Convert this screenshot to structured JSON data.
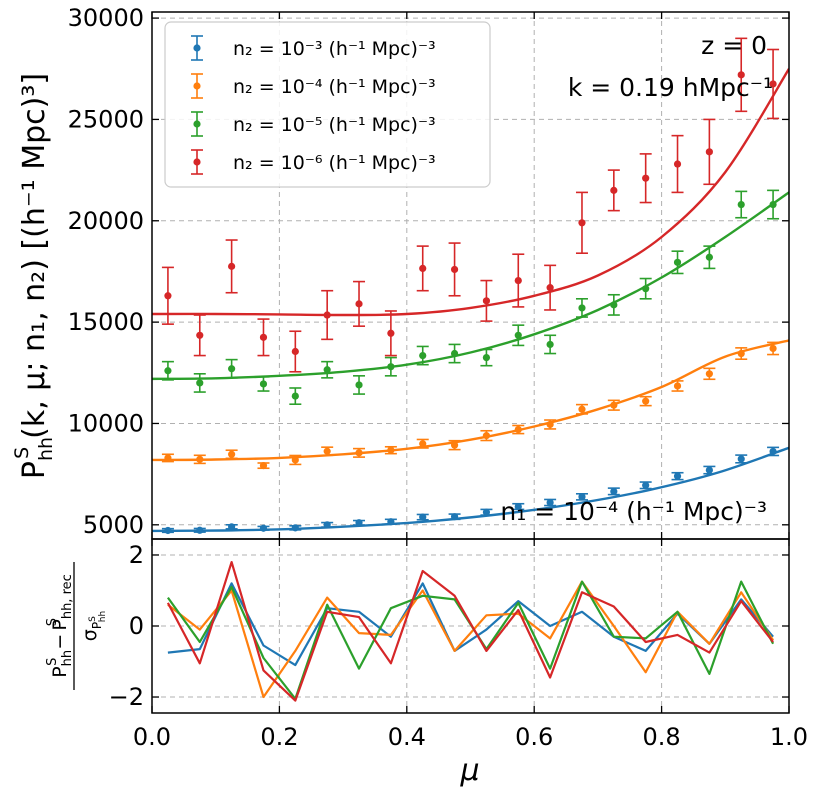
{
  "chart_data": [
    {
      "type": "scatter",
      "panel": "top",
      "xlim": [
        0,
        1
      ],
      "ylim": [
        4300,
        30300
      ],
      "yticks": [
        5000,
        10000,
        15000,
        20000,
        25000,
        30000
      ],
      "ytick_labels": [
        "5000",
        "10000",
        "15000",
        "20000",
        "25000",
        "30000"
      ],
      "xticks": [
        0,
        0.2,
        0.4,
        0.6,
        0.8,
        1.0
      ],
      "grid": true,
      "ylabel": {
        "main": "P",
        "sup": "S",
        "sub": "hh",
        "args": "(k, μ; n₁, n₂) [(h⁻¹ Mpc)³]"
      },
      "annotations": {
        "z": "z = 0",
        "k": "k = 0.19 hMpc⁻¹",
        "n1": "n₁ = 10⁻⁴ (h⁻¹ Mpc)⁻³"
      },
      "legend_position": "top-left",
      "series": [
        {
          "name": "n₂ = 10⁻³ (h⁻¹ Mpc)⁻³",
          "color": "#1f77b4",
          "x": [
            0.025,
            0.075,
            0.125,
            0.175,
            0.225,
            0.275,
            0.325,
            0.375,
            0.425,
            0.475,
            0.525,
            0.575,
            0.625,
            0.675,
            0.725,
            0.775,
            0.825,
            0.875,
            0.925,
            0.975
          ],
          "y": [
            4720,
            4730,
            4900,
            4830,
            4850,
            5000,
            5100,
            5150,
            5380,
            5400,
            5620,
            5900,
            6100,
            6380,
            6650,
            6950,
            7400,
            7700,
            8250,
            8620
          ],
          "err": [
            90,
            90,
            100,
            90,
            100,
            110,
            110,
            120,
            130,
            130,
            140,
            140,
            150,
            150,
            160,
            160,
            170,
            180,
            190,
            200
          ],
          "fit": [
            4700,
            4720,
            4800,
            4960,
            5200,
            5560,
            6050,
            6700,
            7580,
            8800
          ]
        },
        {
          "name": "n₂ = 10⁻⁴ (h⁻¹ Mpc)⁻³",
          "color": "#ff7f0e",
          "x": [
            0.025,
            0.075,
            0.125,
            0.175,
            0.225,
            0.275,
            0.325,
            0.375,
            0.425,
            0.475,
            0.525,
            0.575,
            0.625,
            0.675,
            0.725,
            0.775,
            0.825,
            0.875,
            0.925,
            0.975
          ],
          "y": [
            8300,
            8230,
            8480,
            7920,
            8200,
            8630,
            8550,
            8680,
            9000,
            8930,
            9400,
            9700,
            9950,
            10700,
            10900,
            11100,
            11850,
            12450,
            13450,
            13700
          ],
          "err": [
            180,
            200,
            200,
            130,
            220,
            200,
            210,
            170,
            210,
            220,
            240,
            200,
            220,
            230,
            240,
            220,
            250,
            270,
            280,
            300
          ],
          "fit": [
            8200,
            8220,
            8300,
            8480,
            8750,
            9200,
            9850,
            10700,
            11800,
            13300,
            14100
          ]
        },
        {
          "name": "n₂ = 10⁻⁵ (h⁻¹ Mpc)⁻³",
          "color": "#2ca02c",
          "x": [
            0.025,
            0.075,
            0.125,
            0.175,
            0.225,
            0.275,
            0.325,
            0.375,
            0.425,
            0.475,
            0.525,
            0.575,
            0.625,
            0.675,
            0.725,
            0.775,
            0.825,
            0.875,
            0.925,
            0.975
          ],
          "y": [
            12600,
            12000,
            12700,
            11950,
            11350,
            12650,
            11900,
            12800,
            13350,
            13450,
            13250,
            14350,
            13900,
            15700,
            15850,
            16650,
            17950,
            18200,
            20800,
            20800
          ],
          "err": [
            450,
            450,
            450,
            350,
            400,
            400,
            450,
            450,
            450,
            450,
            400,
            500,
            450,
            450,
            500,
            500,
            550,
            550,
            650,
            700
          ],
          "fit": [
            12200,
            12230,
            12350,
            12550,
            12900,
            13500,
            14400,
            15600,
            17200,
            19200,
            21400
          ]
        },
        {
          "name": "n₂ = 10⁻⁶ (h⁻¹ Mpc)⁻³",
          "color": "#d62728",
          "x": [
            0.025,
            0.075,
            0.125,
            0.175,
            0.225,
            0.275,
            0.325,
            0.375,
            0.425,
            0.475,
            0.525,
            0.575,
            0.625,
            0.675,
            0.725,
            0.775,
            0.825,
            0.875,
            0.925,
            0.975
          ],
          "y": [
            16300,
            14350,
            17750,
            14250,
            13550,
            15350,
            15900,
            14450,
            17650,
            17600,
            16050,
            17050,
            16700,
            19900,
            21500,
            22100,
            22800,
            23400,
            27200,
            26750
          ],
          "err": [
            1400,
            1000,
            1300,
            900,
            1000,
            1200,
            1100,
            1100,
            1100,
            1300,
            1000,
            1300,
            1100,
            1500,
            1000,
            1200,
            1400,
            1600,
            1800,
            1700
          ],
          "fit": [
            15400,
            15400,
            15380,
            15350,
            15400,
            15700,
            16300,
            17300,
            19200,
            22400,
            27500
          ]
        }
      ]
    },
    {
      "type": "line",
      "panel": "bottom",
      "xlim": [
        0,
        1
      ],
      "ylim": [
        -2.45,
        2.45
      ],
      "yticks": [
        -2,
        0,
        2
      ],
      "ytick_labels": [
        "−2",
        "0",
        "2"
      ],
      "xticks": [
        0,
        0.2,
        0.4,
        0.6,
        0.8,
        1.0
      ],
      "xtick_labels": [
        "0.0",
        "0.2",
        "0.4",
        "0.6",
        "0.8",
        "1.0"
      ],
      "xlabel": "μ",
      "ylabel": {
        "num_a": "P",
        "num_a_sup": "S",
        "num_a_sub": "hh",
        "minus": "−",
        "num_b": "P",
        "num_b_sup": "S",
        "num_b_sub": "hh, rec",
        "den": "σ",
        "den_sub": "P",
        "den_sub_sup": "S",
        "den_sub_sub": "hh"
      },
      "grid": true,
      "x": [
        0.025,
        0.075,
        0.125,
        0.175,
        0.225,
        0.275,
        0.325,
        0.375,
        0.425,
        0.475,
        0.525,
        0.575,
        0.625,
        0.675,
        0.725,
        0.775,
        0.825,
        0.875,
        0.925,
        0.975
      ],
      "series": [
        {
          "name": "n₂ = 10⁻³",
          "color": "#1f77b4",
          "values": [
            -0.75,
            -0.65,
            1.2,
            -0.55,
            -1.1,
            0.5,
            0.4,
            -0.3,
            1.2,
            -0.7,
            -0.1,
            0.7,
            0.0,
            0.4,
            -0.3,
            -0.7,
            0.35,
            -0.5,
            0.75,
            -0.3
          ]
        },
        {
          "name": "n₂ = 10⁻⁴",
          "color": "#ff7f0e",
          "values": [
            0.6,
            -0.1,
            1.0,
            -2.0,
            -0.7,
            0.8,
            -0.2,
            -0.25,
            1.0,
            -0.7,
            0.3,
            0.35,
            -0.35,
            1.25,
            0.0,
            -1.3,
            0.4,
            -0.5,
            0.95,
            -0.4
          ]
        },
        {
          "name": "n₂ = 10⁻⁵",
          "color": "#2ca02c",
          "values": [
            0.8,
            -0.45,
            1.1,
            -0.9,
            -2.05,
            0.6,
            -1.2,
            0.5,
            0.85,
            0.75,
            -0.65,
            0.65,
            -1.2,
            1.25,
            -0.3,
            -0.35,
            0.4,
            -1.35,
            1.25,
            -0.5
          ]
        },
        {
          "name": "n₂ = 10⁻⁶",
          "color": "#d62728",
          "values": [
            0.65,
            -1.05,
            1.8,
            -1.25,
            -2.1,
            0.4,
            0.25,
            -1.05,
            1.55,
            0.85,
            -0.7,
            0.45,
            -1.45,
            0.95,
            0.55,
            -0.45,
            -0.25,
            -0.75,
            0.7,
            -0.45
          ]
        }
      ]
    }
  ]
}
